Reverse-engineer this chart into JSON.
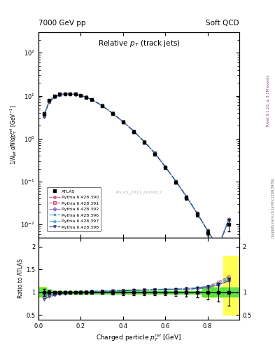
{
  "title_left": "7000 GeV pp",
  "title_right": "Soft QCD",
  "plot_title": "Relative $p_T$ (track jets)",
  "xlabel": "Charged particle $p_T^{rel}$ [GeV]",
  "ylabel_main": "$1/N_\\mathrm{jet}\\,dN/dp_T^\\mathrm{rel}$ [GeV$^{-1}$]",
  "ylabel_ratio": "Ratio to ATLAS",
  "right_label1": "Rivet 3.1.10; ≥ 3.1M events",
  "right_label2": "mcplots.cern.ch [arXiv:1306.3436]",
  "atlas_label": "ATLAS_2011_I919017",
  "x_data": [
    0.025,
    0.05,
    0.075,
    0.1,
    0.125,
    0.15,
    0.175,
    0.2,
    0.225,
    0.25,
    0.3,
    0.35,
    0.4,
    0.45,
    0.5,
    0.55,
    0.6,
    0.65,
    0.7,
    0.75,
    0.8,
    0.85,
    0.9
  ],
  "atlas_y": [
    3.8,
    7.8,
    9.8,
    10.8,
    11.2,
    11.2,
    10.8,
    10.2,
    9.2,
    8.2,
    5.8,
    3.8,
    2.4,
    1.45,
    0.82,
    0.44,
    0.21,
    0.096,
    0.042,
    0.017,
    0.0065,
    0.0025,
    0.01
  ],
  "atlas_yerr": [
    0.3,
    0.3,
    0.3,
    0.3,
    0.3,
    0.3,
    0.3,
    0.3,
    0.3,
    0.3,
    0.25,
    0.2,
    0.15,
    0.1,
    0.06,
    0.03,
    0.015,
    0.008,
    0.004,
    0.002,
    0.001,
    0.0005,
    0.003
  ],
  "atlas_sys_lo": [
    0.88,
    0.95,
    0.97,
    0.97,
    0.97,
    0.97,
    0.97,
    0.97,
    0.97,
    0.97,
    0.97,
    0.97,
    0.97,
    0.97,
    0.97,
    0.97,
    0.97,
    0.97,
    0.97,
    0.97,
    0.88,
    0.88,
    0.5
  ],
  "atlas_sys_hi": [
    1.12,
    1.05,
    1.03,
    1.03,
    1.03,
    1.03,
    1.03,
    1.03,
    1.03,
    1.03,
    1.03,
    1.03,
    1.03,
    1.03,
    1.03,
    1.03,
    1.03,
    1.03,
    1.03,
    1.03,
    1.12,
    1.12,
    1.8
  ],
  "mc_colors": [
    "#cc5577",
    "#cc5577",
    "#8866cc",
    "#44aacc",
    "#44aacc",
    "#334488"
  ],
  "mc_labels": [
    "Pythia 6.428 390",
    "Pythia 6.428 391",
    "Pythia 6.428 392",
    "Pythia 6.428 396",
    "Pythia 6.428 397",
    "Pythia 6.428 398"
  ],
  "mc_markers": [
    "o",
    "s",
    "D",
    "*",
    "^",
    "v"
  ],
  "mc_linestyles": [
    "--",
    "--",
    "--",
    "-.",
    "-.",
    "-."
  ],
  "mc_ratios": [
    [
      0.88,
      0.93,
      0.95,
      0.97,
      0.98,
      0.99,
      0.99,
      1.0,
      1.0,
      1.01,
      1.02,
      1.03,
      1.04,
      1.04,
      1.05,
      1.05,
      1.06,
      1.07,
      1.08,
      1.1,
      1.13,
      1.22,
      1.35
    ],
    [
      0.9,
      0.94,
      0.96,
      0.98,
      0.99,
      0.99,
      1.0,
      1.0,
      1.01,
      1.01,
      1.02,
      1.03,
      1.04,
      1.04,
      1.05,
      1.05,
      1.06,
      1.06,
      1.07,
      1.09,
      1.11,
      1.19,
      1.3
    ],
    [
      0.91,
      0.95,
      0.97,
      0.98,
      0.99,
      1.0,
      1.0,
      1.01,
      1.01,
      1.01,
      1.02,
      1.03,
      1.03,
      1.04,
      1.04,
      1.05,
      1.05,
      1.06,
      1.06,
      1.08,
      1.1,
      1.16,
      1.25
    ],
    [
      0.92,
      0.96,
      0.97,
      0.99,
      0.99,
      1.0,
      1.0,
      1.01,
      1.01,
      1.02,
      1.03,
      1.04,
      1.04,
      1.05,
      1.05,
      1.06,
      1.06,
      1.07,
      1.08,
      1.09,
      1.12,
      1.18,
      1.28
    ],
    [
      0.92,
      0.96,
      0.97,
      0.99,
      0.99,
      1.0,
      1.0,
      1.01,
      1.01,
      1.02,
      1.03,
      1.04,
      1.04,
      1.05,
      1.05,
      1.06,
      1.07,
      1.07,
      1.08,
      1.1,
      1.13,
      1.2,
      1.32
    ],
    [
      0.84,
      0.9,
      0.93,
      0.96,
      0.97,
      0.98,
      0.99,
      0.99,
      1.0,
      1.0,
      1.01,
      1.02,
      1.03,
      1.04,
      1.04,
      1.05,
      1.05,
      1.06,
      1.06,
      1.08,
      1.1,
      1.15,
      1.25
    ]
  ],
  "ylim_main": [
    0.005,
    300
  ],
  "ylim_ratio": [
    0.4,
    2.2
  ],
  "xlim": [
    0.0,
    0.95
  ],
  "green_band": [
    0.9,
    1.1
  ],
  "yellow_band": [
    0.75,
    1.25
  ]
}
